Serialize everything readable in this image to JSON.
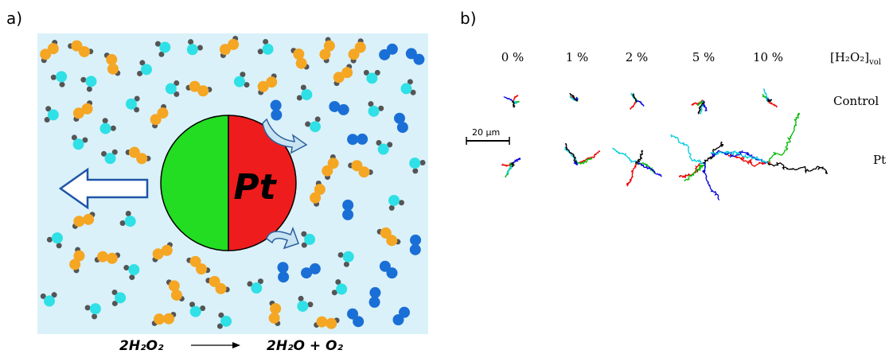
{
  "panel_a": {
    "label": "a)",
    "particle_label": "Pt",
    "equation": {
      "reactant": "2H₂O₂",
      "product": "2H₂O + O₂"
    }
  },
  "panel_b": {
    "label": "b)",
    "concentrations": [
      "0 %",
      "1 %",
      "2 %",
      "5 %",
      "10 %"
    ],
    "axis_label": "[H₂O₂]",
    "axis_label_sub": "vol",
    "rows": [
      "Control",
      "Pt"
    ],
    "scale_bar": "20 μm"
  }
}
